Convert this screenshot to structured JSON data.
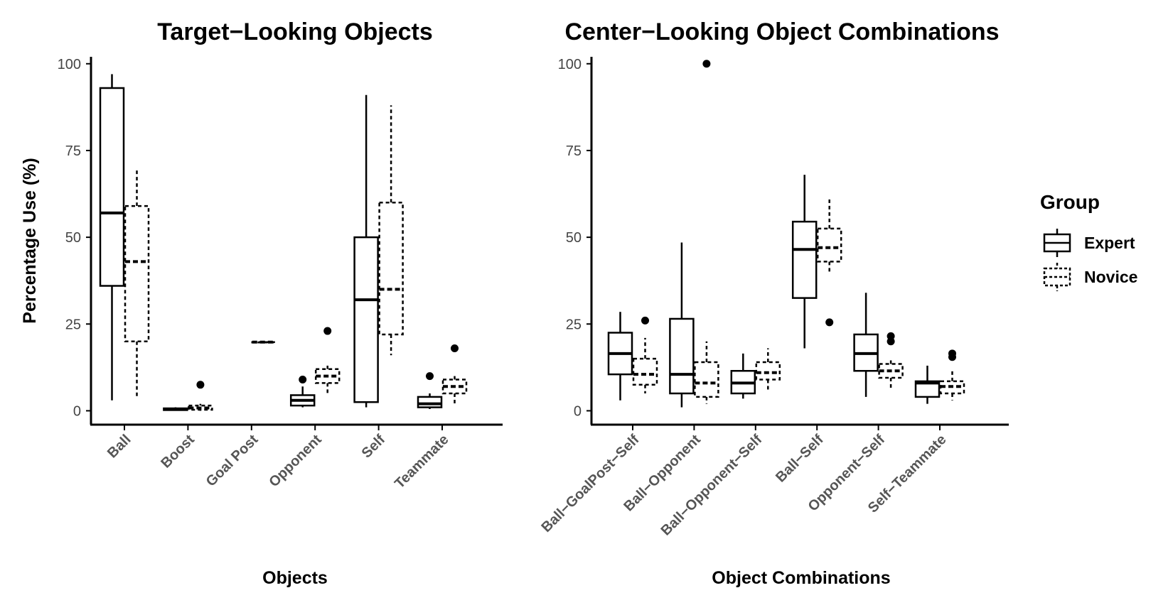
{
  "chart_data": [
    {
      "type": "boxplot",
      "title": "Target−Looking Objects",
      "xlabel": "Objects",
      "ylabel": "Percentage Use (%)",
      "ylim": [
        -4,
        102
      ],
      "yticks": [
        0,
        25,
        50,
        75,
        100
      ],
      "categories": [
        "Ball",
        "Boost",
        "Goal Post",
        "Opponent",
        "Self",
        "Teammate"
      ],
      "series": [
        {
          "name": "Expert",
          "boxes": [
            {
              "min": 3,
              "q1": 36,
              "median": 57,
              "q3": 93,
              "max": 97,
              "outliers": []
            },
            {
              "min": 0,
              "q1": 0.2,
              "median": 0.4,
              "q3": 0.7,
              "max": 1,
              "outliers": []
            },
            null,
            {
              "min": 1,
              "q1": 1.5,
              "median": 3,
              "q3": 4.5,
              "max": 7,
              "outliers": [
                9
              ]
            },
            {
              "min": 1,
              "q1": 2.5,
              "median": 32,
              "q3": 50,
              "max": 91,
              "outliers": []
            },
            {
              "min": 0.5,
              "q1": 1,
              "median": 2,
              "q3": 4,
              "max": 5,
              "outliers": [
                10
              ]
            }
          ]
        },
        {
          "name": "Novice",
          "boxes": [
            {
              "min": 4,
              "q1": 20,
              "median": 43,
              "q3": 59,
              "max": 70,
              "outliers": []
            },
            {
              "min": 0,
              "q1": 0.3,
              "median": 0.8,
              "q3": 1.5,
              "max": 2,
              "outliers": [
                7.5
              ]
            },
            {
              "min": 19.8,
              "q1": 19.8,
              "median": 19.8,
              "q3": 19.8,
              "max": 19.8,
              "outliers": []
            },
            {
              "min": 5,
              "q1": 8,
              "median": 10,
              "q3": 12,
              "max": 13,
              "outliers": [
                23
              ]
            },
            {
              "min": 16,
              "q1": 22,
              "median": 35,
              "q3": 60,
              "max": 88,
              "outliers": []
            },
            {
              "min": 2,
              "q1": 5,
              "median": 7,
              "q3": 9,
              "max": 10,
              "outliers": [
                18
              ]
            }
          ]
        }
      ]
    },
    {
      "type": "boxplot",
      "title": "Center−Looking Object Combinations",
      "xlabel": "Object Combinations",
      "ylabel": "",
      "ylim": [
        -4,
        102
      ],
      "yticks": [
        0,
        25,
        50,
        75,
        100
      ],
      "categories": [
        "Ball−GoalPost−Self",
        "Ball−Opponent",
        "Ball−Opponent−Self",
        "Ball−Self",
        "Opponent−Self",
        "Self−Teammate"
      ],
      "series": [
        {
          "name": "Expert",
          "boxes": [
            {
              "min": 3,
              "q1": 10.5,
              "median": 16.5,
              "q3": 22.5,
              "max": 28.5,
              "outliers": []
            },
            {
              "min": 1,
              "q1": 5,
              "median": 10.5,
              "q3": 26.5,
              "max": 48.5,
              "outliers": []
            },
            {
              "min": 3.5,
              "q1": 5,
              "median": 8,
              "q3": 11.5,
              "max": 16.5,
              "outliers": []
            },
            {
              "min": 18,
              "q1": 32.5,
              "median": 46.5,
              "q3": 54.5,
              "max": 68,
              "outliers": []
            },
            {
              "min": 4,
              "q1": 11.5,
              "median": 16.5,
              "q3": 22,
              "max": 34,
              "outliers": []
            },
            {
              "min": 2,
              "q1": 4,
              "median": 8,
              "q3": 8.5,
              "max": 13,
              "outliers": []
            }
          ]
        },
        {
          "name": "Novice",
          "boxes": [
            {
              "min": 5,
              "q1": 7.5,
              "median": 10.5,
              "q3": 15,
              "max": 21,
              "outliers": [
                26
              ]
            },
            {
              "min": 2,
              "q1": 4,
              "median": 8,
              "q3": 14,
              "max": 20,
              "outliers": [
                100
              ]
            },
            {
              "min": 6,
              "q1": 9,
              "median": 11,
              "q3": 14,
              "max": 18,
              "outliers": []
            },
            {
              "min": 40,
              "q1": 43,
              "median": 47,
              "q3": 52.5,
              "max": 61.5,
              "outliers": [
                25.5
              ]
            },
            {
              "min": 6.5,
              "q1": 9.5,
              "median": 11.5,
              "q3": 13.5,
              "max": 15,
              "outliers": [
                20,
                21.5
              ]
            },
            {
              "min": 3,
              "q1": 5,
              "median": 7,
              "q3": 8.5,
              "max": 12,
              "outliers": [
                15.5,
                16.5
              ]
            }
          ]
        }
      ]
    }
  ],
  "legend": {
    "title": "Group",
    "position": "right",
    "items": [
      {
        "label": "Expert",
        "style": "solid"
      },
      {
        "label": "Novice",
        "style": "dashed"
      }
    ]
  }
}
